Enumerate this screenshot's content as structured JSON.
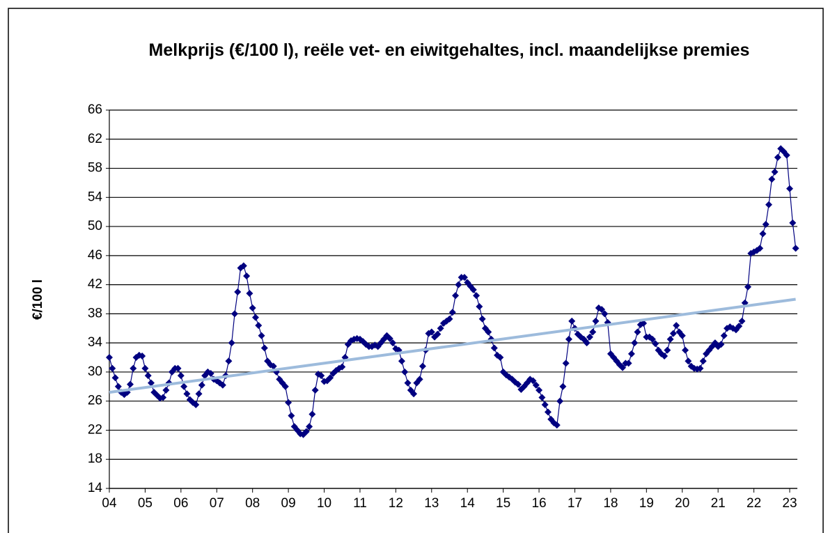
{
  "chart_data": {
    "type": "line",
    "title": "Melkprijs (€/100 l), reële vet- en eiwitgehaltes, incl. maandelijkse premies",
    "y_label": "€/100 l",
    "categories": [
      "04",
      null,
      null,
      null,
      null,
      null,
      null,
      null,
      null,
      null,
      null,
      null,
      "05",
      null,
      null,
      null,
      null,
      null,
      null,
      null,
      null,
      null,
      null,
      null,
      "06",
      null,
      null,
      null,
      null,
      null,
      null,
      null,
      null,
      null,
      null,
      null,
      "07",
      null,
      null,
      null,
      null,
      null,
      null,
      null,
      null,
      null,
      null,
      null,
      "08",
      null,
      null,
      null,
      null,
      null,
      null,
      null,
      null,
      null,
      null,
      null,
      "09",
      null,
      null,
      null,
      null,
      null,
      null,
      null,
      null,
      null,
      null,
      null,
      "10",
      null,
      null,
      null,
      null,
      null,
      null,
      null,
      null,
      null,
      null,
      null,
      "11",
      null,
      null,
      null,
      null,
      null,
      null,
      null,
      null,
      null,
      null,
      null,
      "12",
      null,
      null,
      null,
      null,
      null,
      null,
      null,
      null,
      null,
      null,
      null,
      "13",
      null,
      null,
      null,
      null,
      null,
      null,
      null,
      null,
      null,
      null,
      null,
      "14",
      null,
      null,
      null,
      null,
      null,
      null,
      null,
      null,
      null,
      null,
      null,
      "15",
      null,
      null,
      null,
      null,
      null,
      null,
      null,
      null,
      null,
      null,
      null,
      "16",
      null,
      null,
      null,
      null,
      null,
      null,
      null,
      null,
      null,
      null,
      null,
      "17",
      null,
      null,
      null,
      null,
      null,
      null,
      null,
      null,
      null,
      null,
      null,
      "18",
      null,
      null,
      null,
      null,
      null,
      null,
      null,
      null,
      null,
      null,
      null,
      "19",
      null,
      null,
      null,
      null,
      null,
      null,
      null,
      null,
      null,
      null,
      null,
      "20",
      null,
      null,
      null,
      null,
      null,
      null,
      null,
      null,
      null,
      null,
      null,
      "21",
      null,
      null,
      null,
      null,
      null,
      null,
      null,
      null,
      null,
      null,
      null,
      "22",
      null,
      null,
      null,
      null,
      null,
      null,
      null,
      null,
      null,
      null,
      null,
      "23",
      null,
      null
    ],
    "series": [
      {
        "color": "#000080",
        "values": [
          32,
          30.5,
          29.2,
          28,
          27.2,
          26.9,
          27.2,
          28.3,
          30.5,
          32,
          32.3,
          32.2,
          30.5,
          29.5,
          28.5,
          27.2,
          26.8,
          26.4,
          26.5,
          27.5,
          28.5,
          30,
          30.5,
          30.5,
          29.5,
          28,
          27,
          26.2,
          25.8,
          25.5,
          27,
          28.2,
          29.5,
          30,
          29.8,
          29,
          28.8,
          28.5,
          28.2,
          29.5,
          31.5,
          34,
          38,
          41,
          44.3,
          44.6,
          43.2,
          40.8,
          38.8,
          37.5,
          36.4,
          35,
          33.3,
          31.5,
          31,
          30.8,
          30,
          29,
          28.5,
          28,
          25.8,
          24,
          22.5,
          22,
          21.5,
          21.4,
          21.8,
          22.5,
          24.2,
          27.5,
          29.7,
          29.5,
          28.7,
          28.8,
          29.2,
          29.8,
          30.2,
          30.5,
          30.7,
          32,
          33.8,
          34.3,
          34.5,
          34.6,
          34.5,
          34.2,
          33.8,
          33.5,
          33.5,
          33.7,
          33.5,
          34,
          34.5,
          35,
          34.6,
          34,
          33.2,
          33,
          31.5,
          30,
          28.5,
          27.5,
          27,
          28.5,
          29,
          30.8,
          33,
          35.3,
          35.5,
          34.8,
          35.2,
          36,
          36.7,
          37,
          37.3,
          38.2,
          40.5,
          42,
          43,
          43,
          42.3,
          41.8,
          41.3,
          40.5,
          39,
          37.3,
          36,
          35.5,
          34.5,
          33.3,
          32.3,
          32,
          30,
          29.6,
          29.3,
          29,
          28.6,
          28.3,
          27.6,
          28,
          28.5,
          29,
          28.8,
          28.2,
          27.5,
          26.5,
          25.5,
          24.5,
          23.5,
          23,
          22.7,
          26,
          28,
          31.2,
          34.5,
          37,
          36,
          35.2,
          34.8,
          34.5,
          34,
          34.8,
          35.5,
          37,
          38.8,
          38.6,
          38,
          36.8,
          32.5,
          32,
          31.5,
          31,
          30.6,
          31.2,
          31.2,
          32.5,
          34,
          35.5,
          36.5,
          36.7,
          34.8,
          34.8,
          34.5,
          33.9,
          33,
          32.5,
          32.2,
          33,
          34.5,
          35.3,
          36.4,
          35.5,
          35,
          33,
          31.5,
          30.8,
          30.5,
          30.4,
          30.5,
          31.5,
          32.5,
          33,
          33.5,
          34,
          33.5,
          33.8,
          35,
          36,
          36.2,
          36,
          35.8,
          36.3,
          37,
          39.5,
          41.7,
          46.3,
          46.5,
          46.7,
          47,
          49,
          50.3,
          53,
          56.5,
          57.5,
          59.5,
          60.7,
          60.3,
          59.8,
          55.2,
          50.5,
          47
        ]
      }
    ],
    "trend": {
      "color": "#9dbbdc",
      "values": [
        27.2,
        40
      ]
    },
    "ylim": [
      14,
      66
    ],
    "yticks": [
      14,
      18,
      22,
      26,
      30,
      34,
      38,
      42,
      46,
      50,
      54,
      58,
      62,
      66
    ],
    "grid": true
  }
}
